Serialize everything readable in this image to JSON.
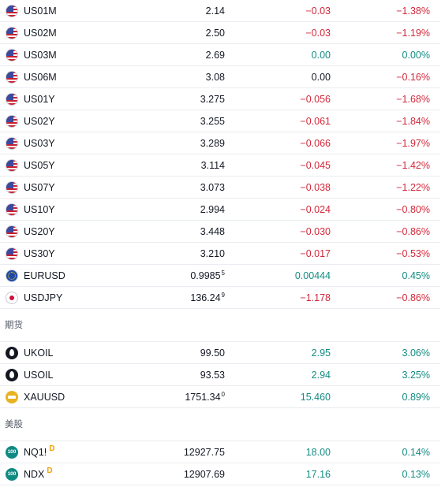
{
  "rows_a": [
    {
      "symbol": "US01M",
      "price": "2.14",
      "price_sup": "",
      "change": "−0.03",
      "change_class": "neg",
      "pct": "−1.38%",
      "pct_class": "neg"
    },
    {
      "symbol": "US02M",
      "price": "2.50",
      "price_sup": "",
      "change": "−0.03",
      "change_class": "neg",
      "pct": "−1.19%",
      "pct_class": "neg"
    },
    {
      "symbol": "US03M",
      "price": "2.69",
      "price_sup": "",
      "change": "0.00",
      "change_class": "pos",
      "pct": "0.00%",
      "pct_class": "pos"
    },
    {
      "symbol": "US06M",
      "price": "3.08",
      "price_sup": "",
      "change": "0.00",
      "change_class": "zero",
      "pct": "−0.16%",
      "pct_class": "neg"
    },
    {
      "symbol": "US01Y",
      "price": "3.275",
      "price_sup": "",
      "change": "−0.056",
      "change_class": "neg",
      "pct": "−1.68%",
      "pct_class": "neg"
    },
    {
      "symbol": "US02Y",
      "price": "3.255",
      "price_sup": "",
      "change": "−0.061",
      "change_class": "neg",
      "pct": "−1.84%",
      "pct_class": "neg"
    },
    {
      "symbol": "US03Y",
      "price": "3.289",
      "price_sup": "",
      "change": "−0.066",
      "change_class": "neg",
      "pct": "−1.97%",
      "pct_class": "neg"
    },
    {
      "symbol": "US05Y",
      "price": "3.114",
      "price_sup": "",
      "change": "−0.045",
      "change_class": "neg",
      "pct": "−1.42%",
      "pct_class": "neg"
    },
    {
      "symbol": "US07Y",
      "price": "3.073",
      "price_sup": "",
      "change": "−0.038",
      "change_class": "neg",
      "pct": "−1.22%",
      "pct_class": "neg"
    },
    {
      "symbol": "US10Y",
      "price": "2.994",
      "price_sup": "",
      "change": "−0.024",
      "change_class": "neg",
      "pct": "−0.80%",
      "pct_class": "neg"
    },
    {
      "symbol": "US20Y",
      "price": "3.448",
      "price_sup": "",
      "change": "−0.030",
      "change_class": "neg",
      "pct": "−0.86%",
      "pct_class": "neg"
    },
    {
      "symbol": "US30Y",
      "price": "3.210",
      "price_sup": "",
      "change": "−0.017",
      "change_class": "neg",
      "pct": "−0.53%",
      "pct_class": "neg"
    },
    {
      "symbol": "EURUSD",
      "price": "0.9985",
      "price_sup": "5",
      "change": "0.00444",
      "change_class": "pos",
      "pct": "0.45%",
      "pct_class": "pos"
    },
    {
      "symbol": "USDJPY",
      "price": "136.24",
      "price_sup": "9",
      "change": "−1.178",
      "change_class": "neg",
      "pct": "−0.86%",
      "pct_class": "neg"
    }
  ],
  "section_futures": "期货",
  "rows_b": [
    {
      "symbol": "UKOIL",
      "price": "99.50",
      "price_sup": "",
      "change": "2.95",
      "change_class": "pos",
      "pct": "3.06%",
      "pct_class": "pos"
    },
    {
      "symbol": "USOIL",
      "price": "93.53",
      "price_sup": "",
      "change": "2.94",
      "change_class": "pos",
      "pct": "3.25%",
      "pct_class": "pos"
    },
    {
      "symbol": "XAUUSD",
      "price": "1751.34",
      "price_sup": "0",
      "change": "15.460",
      "change_class": "pos",
      "pct": "0.89%",
      "pct_class": "pos"
    }
  ],
  "section_us_stocks": "美股",
  "rows_c": [
    {
      "symbol": "NQ1!",
      "badge": "D",
      "icon_text": "100",
      "price": "12927.75",
      "price_sup": "",
      "change": "18.00",
      "change_class": "pos",
      "pct": "0.14%",
      "pct_class": "pos"
    },
    {
      "symbol": "NDX",
      "badge": "D",
      "icon_text": "100",
      "price": "12907.69",
      "price_sup": "",
      "change": "17.16",
      "change_class": "pos",
      "pct": "0.13%",
      "pct_class": "pos"
    }
  ],
  "icons": {
    "rows_a": [
      "us-flag-icon",
      "us-flag-icon",
      "us-flag-icon",
      "us-flag-icon",
      "us-flag-icon",
      "us-flag-icon",
      "us-flag-icon",
      "us-flag-icon",
      "us-flag-icon",
      "us-flag-icon",
      "us-flag-icon",
      "us-flag-icon",
      "eu-us-flag-icon",
      "us-jp-flag-icon"
    ],
    "rows_b": [
      "oil-drop-icon",
      "oil-drop-icon",
      "gold-bar-icon"
    ],
    "rows_c": [
      "nasdaq-100-icon",
      "nasdaq-100-icon"
    ]
  },
  "colors": {
    "negative": "#d3283a",
    "positive": "#138c82",
    "badge": "#f0a000"
  }
}
